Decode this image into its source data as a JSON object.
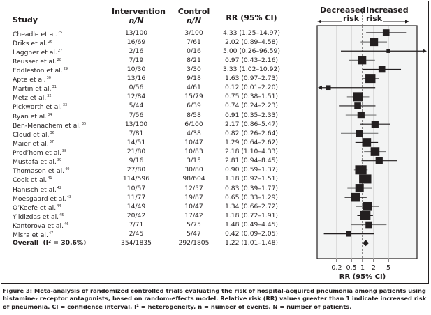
{
  "headers": {
    "study": "Study",
    "intervention": "Intervention",
    "intervention_sub": "n/N",
    "control": "Control",
    "control_sub": "n/N",
    "rr": "RR (95% CI)",
    "decreased": "Decreased",
    "increased": "Increased",
    "risk_left": "risk",
    "risk_right": "risk"
  },
  "overall": {
    "label": "Overall",
    "i2_label": "(I² = 30.6%)",
    "intervention": "354/1835",
    "control": "292/1805",
    "rr_text": "1.22 (1.01–1.48)"
  },
  "caption": {
    "figure": "Figure 3:",
    "text": "Meta-analysis of randomized controlled trials evaluating the risk of hospital-acquired pneumonia among patients using histamine₂ receptor antagonists, based on random-effects model. Relative risk (RR) values greater than 1 indicate increased risk of pneumonia. CI = confidence interval, I² = heterogeneity, n = number of events, N = number of patients."
  },
  "chart_data": {
    "type": "forest",
    "title": "",
    "xlabel": "RR (95% CI)",
    "xscale": "log",
    "xticks": [
      0.2,
      0.5,
      1,
      2,
      5
    ],
    "xtick_labels": [
      "0.2",
      "0.5",
      "1",
      "2",
      "5"
    ],
    "reference_line": 1,
    "studies": [
      {
        "study": "Cheadle et al.",
        "ref": "25",
        "intervention": "13/100",
        "control": "3/100",
        "rr": 4.33,
        "lo": 1.25,
        "hi": 14.97,
        "rr_text": "4.33 (1.25–14.97)",
        "weight": 0.55
      },
      {
        "study": "Driks et al.",
        "ref": "26",
        "intervention": "16/69",
        "control": "7/61",
        "rr": 2.02,
        "lo": 0.89,
        "hi": 4.58,
        "rr_text": "2.02 (0.89–4.58)",
        "weight": 0.75
      },
      {
        "study": "Laggner et al.",
        "ref": "27",
        "intervention": "2/16",
        "control": "0/16",
        "rr": 5.0,
        "lo": 0.26,
        "hi": 96.59,
        "rr_text": "5.00 (0.26–96.59)",
        "weight": 0.2
      },
      {
        "study": "Reusser et al.",
        "ref": "28",
        "intervention": "7/19",
        "control": "8/21",
        "rr": 0.97,
        "lo": 0.43,
        "hi": 2.16,
        "rr_text": "0.97 (0.43–2.16)",
        "weight": 0.75
      },
      {
        "study": "Eddleston et al.",
        "ref": "29",
        "intervention": "10/30",
        "control": "3/30",
        "rr": 3.33,
        "lo": 1.02,
        "hi": 10.92,
        "rr_text": "3.33 (1.02–10.92)",
        "weight": 0.55
      },
      {
        "study": "Apte et al.",
        "ref": "30",
        "intervention": "13/16",
        "control": "9/18",
        "rr": 1.63,
        "lo": 0.97,
        "hi": 2.73,
        "rr_text": "1.63 (0.97–2.73)",
        "weight": 0.95
      },
      {
        "study": "Martin et al.",
        "ref": "31",
        "intervention": "0/56",
        "control": "4/61",
        "rr": 0.12,
        "lo": 0.01,
        "hi": 2.2,
        "rr_text": "0.12 (0.01–2.20)",
        "weight": 0.3
      },
      {
        "study": "Metz et al.",
        "ref": "32",
        "intervention": "12/84",
        "control": "15/79",
        "rr": 0.75,
        "lo": 0.38,
        "hi": 1.51,
        "rr_text": "0.75 (0.38–1.51)",
        "weight": 0.85
      },
      {
        "study": "Pickworth et al.",
        "ref": "33",
        "intervention": "5/44",
        "control": "6/39",
        "rr": 0.74,
        "lo": 0.24,
        "hi": 2.23,
        "rr_text": "0.74 (0.24–2.23)",
        "weight": 0.55
      },
      {
        "study": "Ryan et al.",
        "ref": "34",
        "intervention": "7/56",
        "control": "8/58",
        "rr": 0.91,
        "lo": 0.35,
        "hi": 2.33,
        "rr_text": "0.91 (0.35–2.33)",
        "weight": 0.6
      },
      {
        "study": "Ben-Menachem et al.",
        "ref": "35",
        "intervention": "13/100",
        "control": "6/100",
        "rr": 2.17,
        "lo": 0.86,
        "hi": 5.47,
        "rr_text": "2.17 (0.86–5.47)",
        "weight": 0.6
      },
      {
        "study": "Cloud et al.",
        "ref": "36",
        "intervention": "7/81",
        "control": "4/38",
        "rr": 0.82,
        "lo": 0.26,
        "hi": 2.64,
        "rr_text": "0.82 (0.26–2.64)",
        "weight": 0.55
      },
      {
        "study": "Maier et al.",
        "ref": "37",
        "intervention": "14/51",
        "control": "10/47",
        "rr": 1.29,
        "lo": 0.64,
        "hi": 2.62,
        "rr_text": "1.29 (0.64–2.62)",
        "weight": 0.8
      },
      {
        "study": "Prod’hom et al.",
        "ref": "38",
        "intervention": "21/80",
        "control": "10/83",
        "rr": 2.18,
        "lo": 1.1,
        "hi": 4.33,
        "rr_text": "2.18 (1.10–4.33)",
        "weight": 0.8
      },
      {
        "study": "Mustafa et al.",
        "ref": "39",
        "intervention": "9/16",
        "control": "3/15",
        "rr": 2.81,
        "lo": 0.94,
        "hi": 8.45,
        "rr_text": "2.81 (0.94–8.45)",
        "weight": 0.6
      },
      {
        "study": "Thomason et al.",
        "ref": "40",
        "intervention": "27/80",
        "control": "30/80",
        "rr": 0.9,
        "lo": 0.59,
        "hi": 1.37,
        "rr_text": "0.90 (0.59–1.37)",
        "weight": 1.1
      },
      {
        "study": "Cook et al.",
        "ref": "41",
        "intervention": "114/596",
        "control": "98/604",
        "rr": 1.18,
        "lo": 0.92,
        "hi": 1.51,
        "rr_text": "1.18 (0.92–1.51)",
        "weight": 1.2
      },
      {
        "study": "Hanisch et al.",
        "ref": "42",
        "intervention": "10/57",
        "control": "12/57",
        "rr": 0.83,
        "lo": 0.39,
        "hi": 1.77,
        "rr_text": "0.83 (0.39–1.77)",
        "weight": 0.75
      },
      {
        "study": "Moesgaard et al.",
        "ref": "43",
        "intervention": "11/77",
        "control": "19/87",
        "rr": 0.65,
        "lo": 0.33,
        "hi": 1.29,
        "rr_text": "0.65 (0.33–1.29)",
        "weight": 0.8
      },
      {
        "study": "O’Keefe et al.",
        "ref": "44",
        "intervention": "14/49",
        "control": "10/47",
        "rr": 1.34,
        "lo": 0.66,
        "hi": 2.72,
        "rr_text": "1.34 (0.66–2.72)",
        "weight": 0.8
      },
      {
        "study": "Yildizdas et al.",
        "ref": "45",
        "intervention": "20/42",
        "control": "17/42",
        "rr": 1.18,
        "lo": 0.72,
        "hi": 1.91,
        "rr_text": "1.18 (0.72–1.91)",
        "weight": 1.0
      },
      {
        "study": "Kantorova et al.",
        "ref": "46",
        "intervention": "7/71",
        "control": "5/75",
        "rr": 1.48,
        "lo": 0.49,
        "hi": 4.45,
        "rr_text": "1.48 (0.49–4.45)",
        "weight": 0.55
      },
      {
        "study": "Misra et al.",
        "ref": "47",
        "intervention": "2/45",
        "control": "5/47",
        "rr": 0.42,
        "lo": 0.09,
        "hi": 2.05,
        "rr_text": "0.42 (0.09–2.05)",
        "weight": 0.4
      }
    ],
    "overall": {
      "rr": 1.22,
      "lo": 1.01,
      "hi": 1.48
    }
  }
}
